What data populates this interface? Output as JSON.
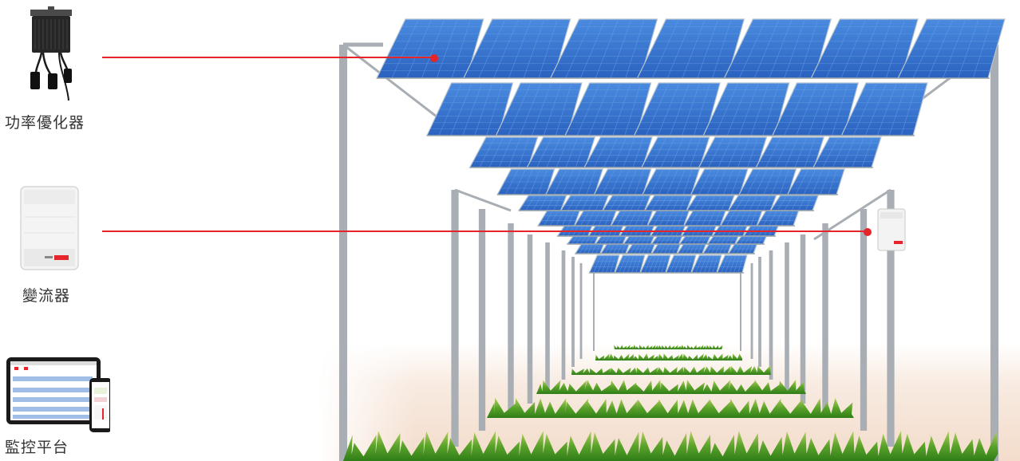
{
  "components": {
    "optimizer": {
      "label": "功率優化器",
      "icon": "power-optimizer-icon"
    },
    "inverter": {
      "label": "變流器",
      "icon": "inverter-icon"
    },
    "monitoring": {
      "label": "監控平台",
      "icon": "monitoring-platform-icon"
    }
  },
  "colors": {
    "pointer_line": "#e5252a",
    "panel_blue": "#2f6fc9",
    "frame": "#a8aeb3",
    "grass_dark": "#3f8f1f",
    "grass_light": "#a8c95a",
    "ground": "#f6e6da"
  }
}
